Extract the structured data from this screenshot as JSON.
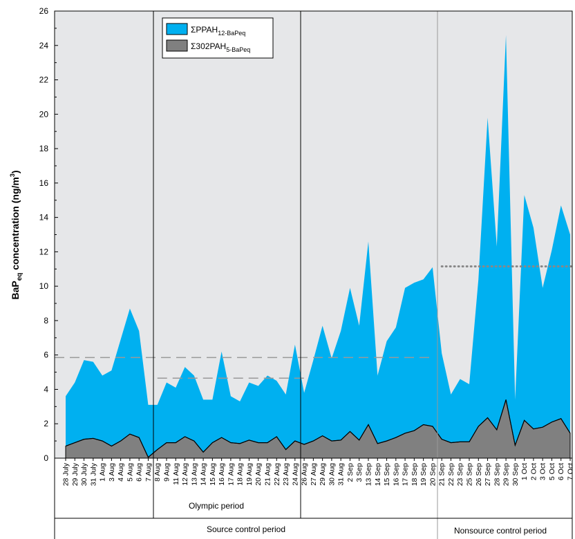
{
  "chart_data": {
    "type": "area",
    "ylabel_main": "BaP",
    "ylabel_sub": "eq",
    "ylabel_rest": " concentration (ng/m",
    "ylabel_sup": "3",
    "ylabel_end": ")",
    "ylim": [
      0,
      26
    ],
    "yticks": [
      "0",
      "2",
      "4",
      "6",
      "8",
      "10",
      "12",
      "14",
      "16",
      "18",
      "20",
      "22",
      "24",
      "26"
    ],
    "grid": false,
    "legend_position": "top-left",
    "legend": [
      {
        "prefix": "ΣPPAH",
        "sub": "12-BaPeq",
        "color": "#00b0f0"
      },
      {
        "prefix": "Σ302PAH",
        "sub": "5-BaPeq",
        "color": "#808080"
      }
    ],
    "categories": [
      "28 July",
      "29 July",
      "30 July",
      "31 July",
      "1 Aug",
      "3 Aug",
      "4 Aug",
      "5 Aug",
      "6 Aug",
      "7 Aug",
      "8 Aug",
      "9 Aug",
      "11 Aug",
      "12 Aug",
      "13 Aug",
      "14 Aug",
      "15 Aug",
      "16 Aug",
      "17 Aug",
      "18 Aug",
      "19 Aug",
      "20 Aug",
      "21 Aug",
      "22 Aug",
      "23 Aug",
      "24 Aug",
      "26 Aug",
      "27 Aug",
      "29 Aug",
      "30 Aug",
      "31 Aug",
      "2 Sep",
      "3 Sep",
      "13 Sep",
      "14 Sep",
      "15 Sep",
      "16 Sep",
      "17 Sep",
      "18 Sep",
      "19 Sep",
      "20 Sep",
      "21 Sep",
      "22 Sep",
      "23 Sep",
      "25 Sep",
      "26 Sep",
      "27 Sep",
      "28 Sep",
      "29 Sep",
      "30 Sep",
      "1 Oct",
      "2 Oct",
      "3 Oct",
      "5 Oct",
      "6 Oct",
      "7 Oct"
    ],
    "series": [
      {
        "name": "ΣPPAH12-BaPeq",
        "color": "#00b0f0",
        "values": [
          3.6,
          4.4,
          5.7,
          5.6,
          4.8,
          5.1,
          6.9,
          8.7,
          7.4,
          3.1,
          3.1,
          4.4,
          4.1,
          5.3,
          4.8,
          3.4,
          3.4,
          6.2,
          3.6,
          3.3,
          4.4,
          4.2,
          4.8,
          4.5,
          3.7,
          6.6,
          3.8,
          5.7,
          7.7,
          5.8,
          7.4,
          9.9,
          7.7,
          12.6,
          4.8,
          6.8,
          7.6,
          9.9,
          10.2,
          10.4,
          11.1,
          6.1,
          3.7,
          4.6,
          4.3,
          10.4,
          19.8,
          12.3,
          24.6,
          3.4,
          15.3,
          13.4,
          9.9,
          12.1,
          14.7,
          13.0
        ]
      },
      {
        "name": "Σ302PAH5-BaPeq",
        "color": "#808080",
        "values": [
          0.7,
          0.9,
          1.1,
          1.15,
          1.0,
          0.7,
          1.0,
          1.4,
          1.2,
          0.05,
          0.5,
          0.9,
          0.9,
          1.25,
          1.0,
          0.35,
          0.9,
          1.2,
          0.9,
          0.85,
          1.05,
          0.9,
          0.9,
          1.25,
          0.5,
          1.0,
          0.8,
          1.0,
          1.3,
          1.0,
          1.05,
          1.55,
          1.05,
          1.95,
          0.85,
          1.0,
          1.2,
          1.45,
          1.6,
          1.95,
          1.85,
          1.1,
          0.9,
          0.95,
          0.95,
          1.85,
          2.35,
          1.65,
          3.4,
          0.75,
          2.2,
          1.7,
          1.8,
          2.1,
          2.3,
          1.45
        ]
      }
    ],
    "reference_lines": [
      {
        "style": "dashed",
        "value": 5.85,
        "from": "28 July",
        "to": "20 Sep"
      },
      {
        "style": "dashed",
        "value": 4.65,
        "from": "8 Aug",
        "to": "26 Aug"
      },
      {
        "style": "dotted",
        "value": 11.15,
        "from": "21 Sep",
        "to": "7 Oct"
      }
    ],
    "periods": {
      "olympic": {
        "label": "Olympic period",
        "from": "8 Aug",
        "to": "24 Aug"
      },
      "source_control": {
        "label": "Source control period"
      },
      "nonsource_control": {
        "label": "Nonsource control period"
      }
    }
  }
}
